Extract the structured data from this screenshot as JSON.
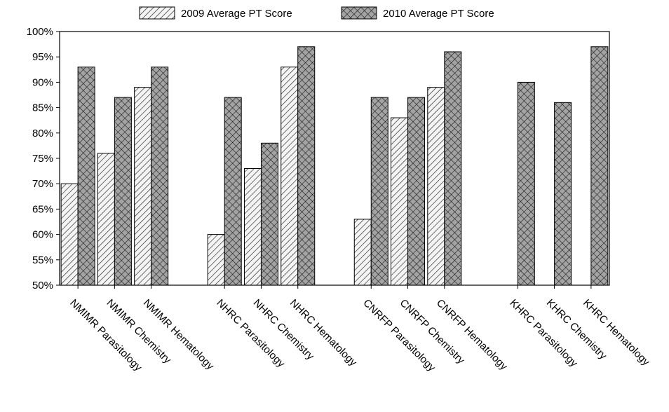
{
  "chart_data": {
    "type": "bar",
    "categories": [
      "NMIMR Parasitology",
      "NMIMR Chemistry",
      "NMIMR Hematology",
      "",
      "NHRC Parasitology",
      "NHRC Chemistry",
      "NHRC Hematology",
      "",
      "CNRFP Parasitology",
      "CNRFP Chemistry",
      "CNRFP Hematology",
      "",
      "KHRC Parasitology",
      "KHRC Chemistry",
      "KHRC Hematology"
    ],
    "series": [
      {
        "name": "2009 Average PT Score",
        "pattern": "diagonal-hatch",
        "values": [
          70,
          76,
          89,
          null,
          60,
          73,
          93,
          null,
          63,
          83,
          89,
          null,
          null,
          null,
          null
        ]
      },
      {
        "name": "2010 Average PT Score",
        "pattern": "crosshatch",
        "values": [
          93,
          87,
          93,
          null,
          87,
          78,
          97,
          null,
          87,
          87,
          96,
          null,
          90,
          86,
          97
        ]
      }
    ],
    "yticks": [
      "50%",
      "55%",
      "60%",
      "65%",
      "70%",
      "75%",
      "80%",
      "85%",
      "90%",
      "95%",
      "100%"
    ],
    "ylim": [
      50,
      100
    ],
    "title": "",
    "xlabel": "",
    "ylabel": "",
    "legend_position": "top",
    "grid": false,
    "colors": {
      "bar_2009_fill": "#f2f2f2",
      "bar_2010_fill": "#9a9a9a",
      "stroke": "#000000"
    }
  }
}
